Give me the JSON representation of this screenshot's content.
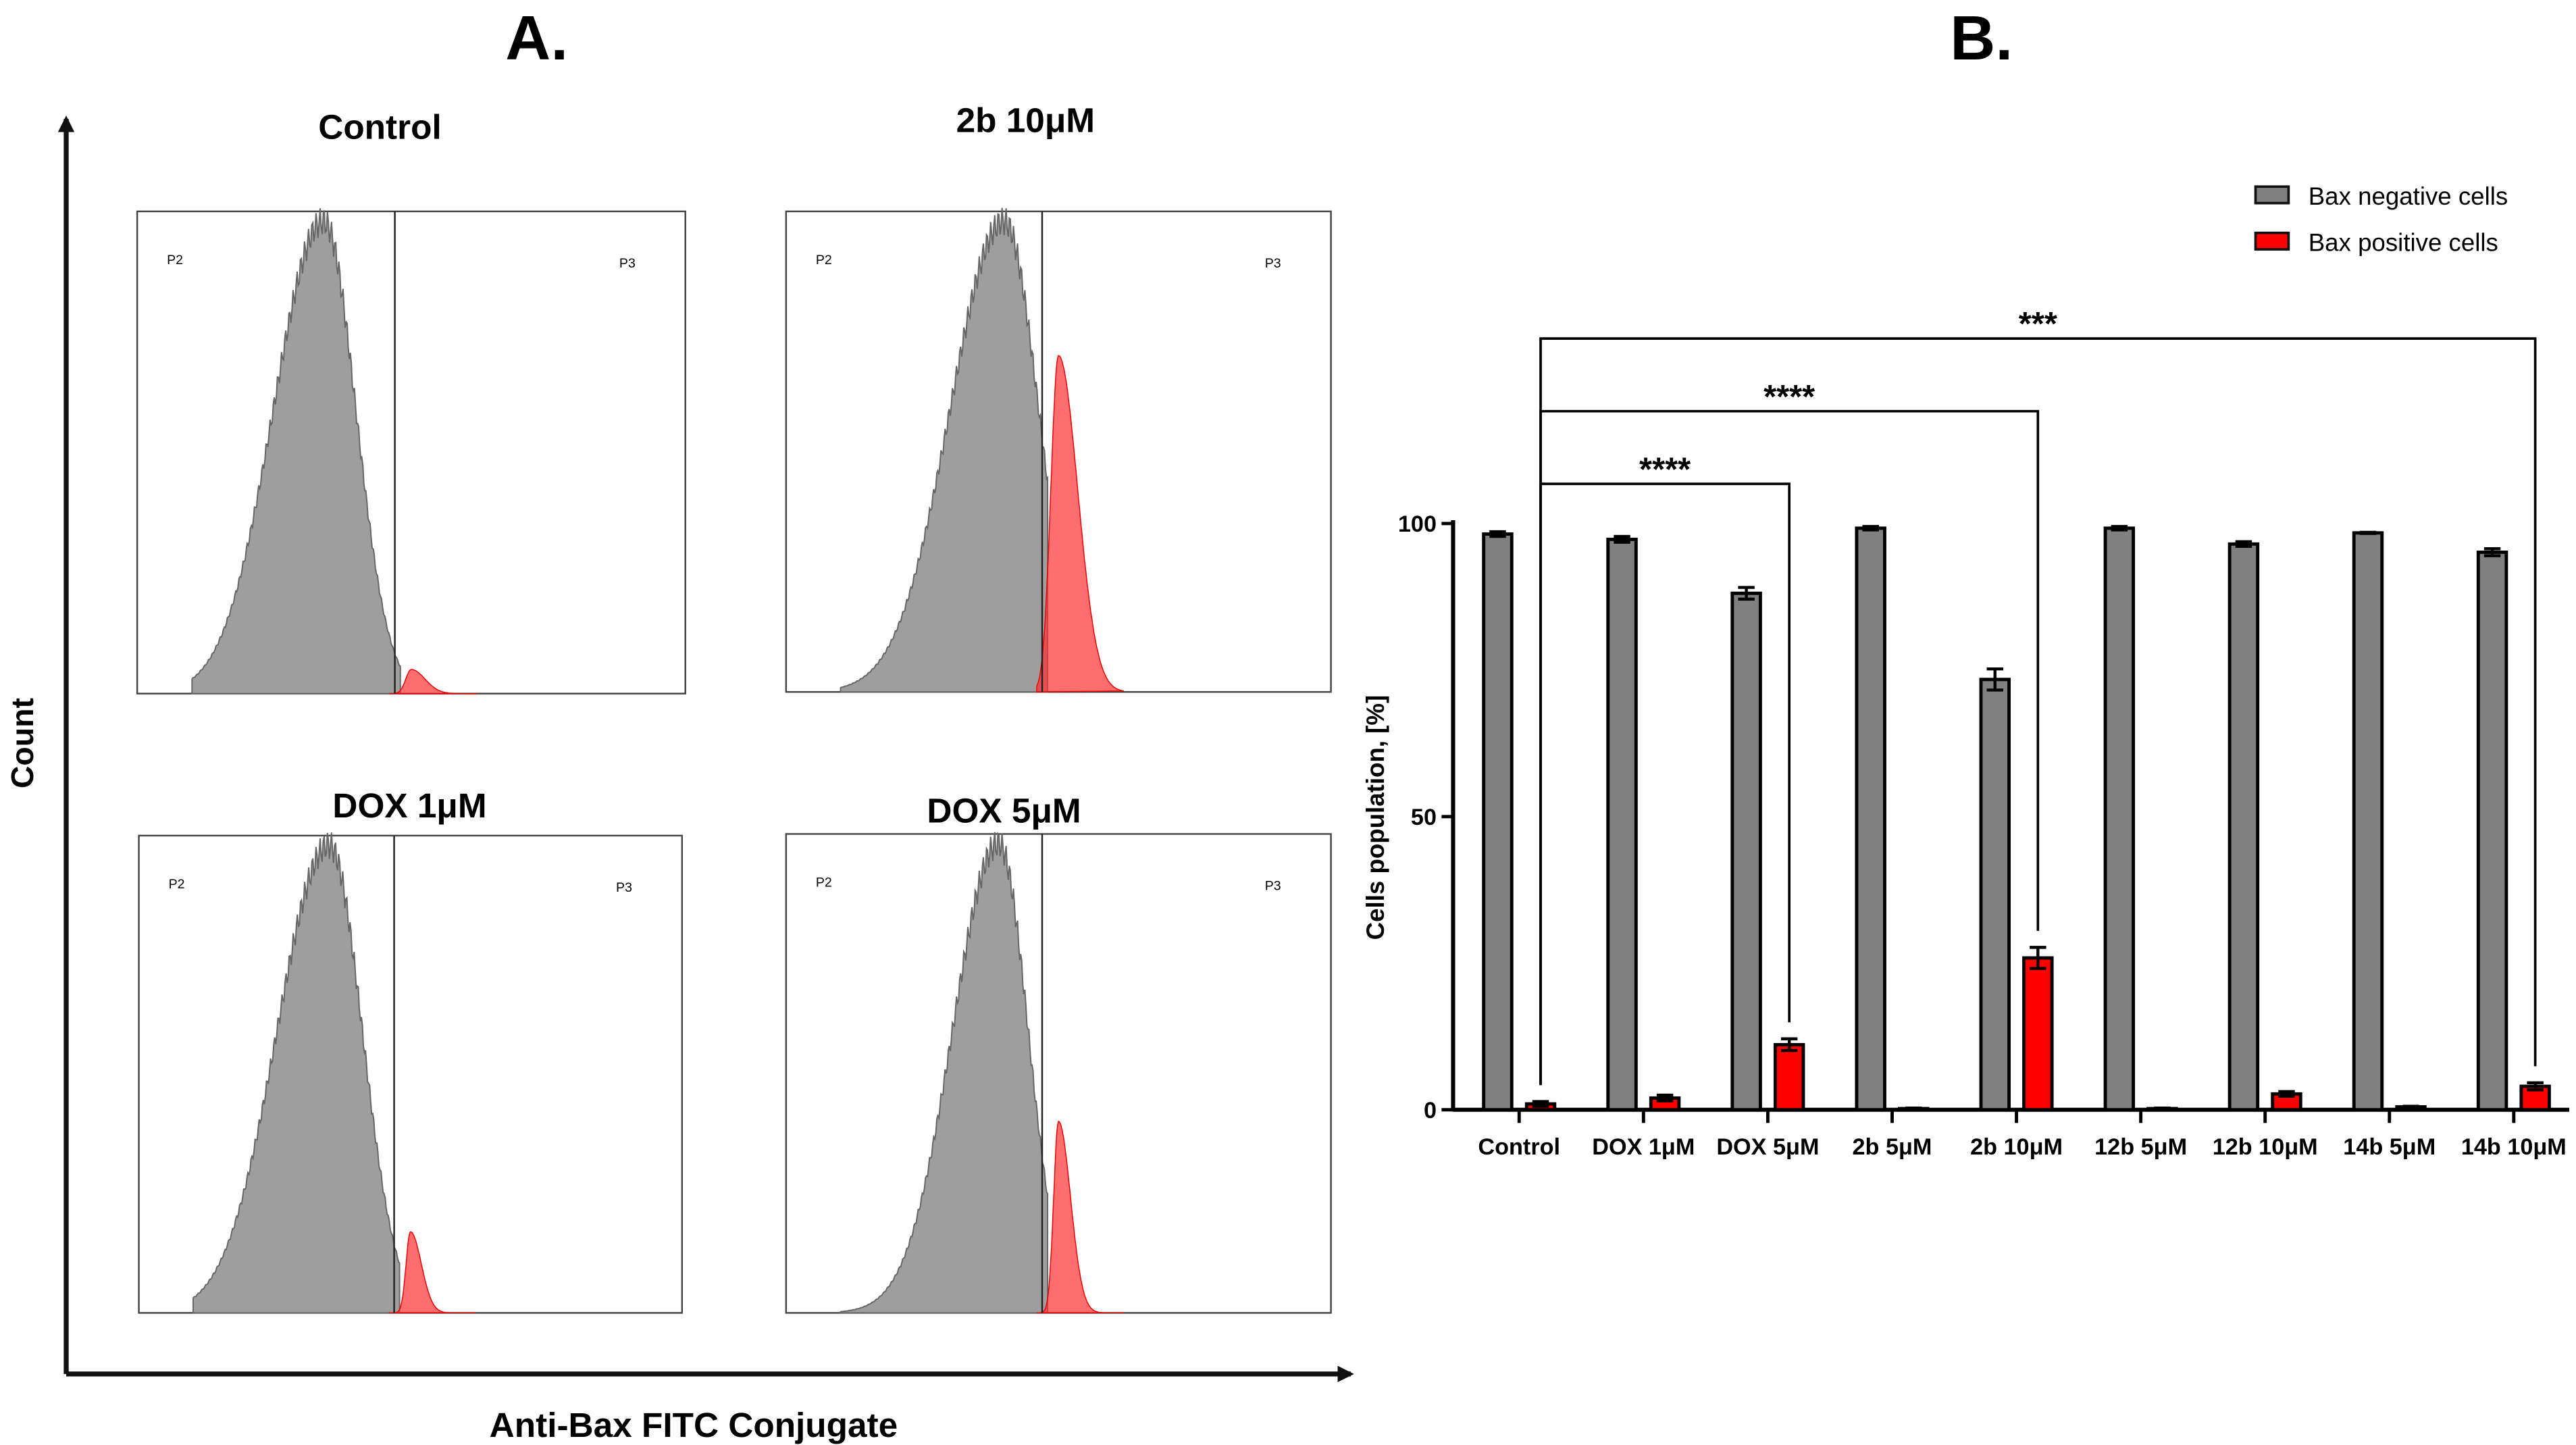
{
  "panel_a": {
    "label": "A.",
    "y_axis_label": "Count",
    "x_axis_label": "Anti-Bax FITC Conjugate",
    "gate_labels": [
      "P2",
      "P3"
    ],
    "histograms": [
      {
        "title": "Control"
      },
      {
        "title": "2b 10μM"
      },
      {
        "title": "DOX 1μM"
      },
      {
        "title": "DOX 5μM"
      }
    ]
  },
  "panel_b": {
    "label": "B."
  },
  "chart_data": {
    "type": "bar",
    "title": "",
    "xlabel": "",
    "ylabel": "Cells population, [%]",
    "ylim": [
      0,
      100
    ],
    "yticks": [
      0,
      50,
      100
    ],
    "legend_position": "top-right",
    "categories": [
      "Control",
      "DOX 1μM",
      "DOX 5μM",
      "2b 5μM",
      "2b 10μM",
      "12b 5μM",
      "12b 10μM",
      "14b 5μM",
      "14b 10μM"
    ],
    "series": [
      {
        "name": "Bax negative cells",
        "color": "#808080",
        "values": [
          98.2,
          97.3,
          88.1,
          99.2,
          73.4,
          99.2,
          96.5,
          98.4,
          95.1
        ],
        "errors": [
          0.4,
          0.5,
          1.0,
          0.3,
          1.8,
          0.3,
          0.4,
          0.1,
          0.6
        ]
      },
      {
        "name": "Bax positive cells",
        "color": "#ff0000",
        "values": [
          1.0,
          2.0,
          11.1,
          0.2,
          25.9,
          0.2,
          2.7,
          0.5,
          4.0
        ],
        "errors": [
          0.4,
          0.5,
          1.0,
          0.1,
          1.8,
          0.1,
          0.4,
          0.1,
          0.6
        ]
      }
    ],
    "significance": [
      {
        "from": "Control",
        "to": "DOX 5μM",
        "label": "****"
      },
      {
        "from": "Control",
        "to": "2b 10μM",
        "label": "****"
      },
      {
        "from": "Control",
        "to": "14b 10μM",
        "label": "***"
      }
    ]
  }
}
